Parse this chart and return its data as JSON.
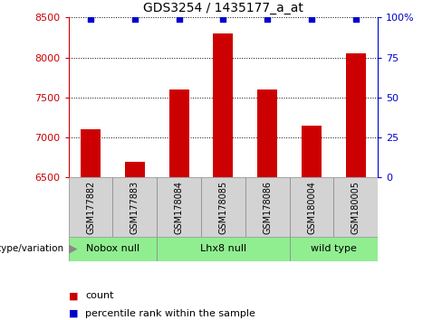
{
  "title": "GDS3254 / 1435177_a_at",
  "samples": [
    "GSM177882",
    "GSM177883",
    "GSM178084",
    "GSM178085",
    "GSM178086",
    "GSM180004",
    "GSM180005"
  ],
  "counts": [
    7100,
    6700,
    7600,
    8300,
    7600,
    7150,
    8050
  ],
  "percentile_ranks": [
    99,
    99,
    99,
    99,
    99,
    99,
    99
  ],
  "bar_color": "#cc0000",
  "dot_color": "#0000cc",
  "ylim_left": [
    6500,
    8500
  ],
  "ylim_right": [
    0,
    100
  ],
  "yticks_left": [
    6500,
    7000,
    7500,
    8000,
    8500
  ],
  "yticks_right": [
    0,
    25,
    50,
    75,
    100
  ],
  "groups": [
    {
      "label": "Nobox null",
      "start": 0,
      "end": 2,
      "color": "#90ee90"
    },
    {
      "label": "Lhx8 null",
      "start": 2,
      "end": 5,
      "color": "#90ee90"
    },
    {
      "label": "wild type",
      "start": 5,
      "end": 7,
      "color": "#90ee90"
    }
  ],
  "genotype_label": "genotype/variation",
  "legend_count_label": "count",
  "legend_pct_label": "percentile rank within the sample",
  "title_fontsize": 10,
  "axis_label_color_left": "#cc0000",
  "axis_label_color_right": "#0000cc",
  "bg_color": "#ffffff",
  "gray_box_color": "#d3d3d3",
  "green_box_color": "#90ee90"
}
